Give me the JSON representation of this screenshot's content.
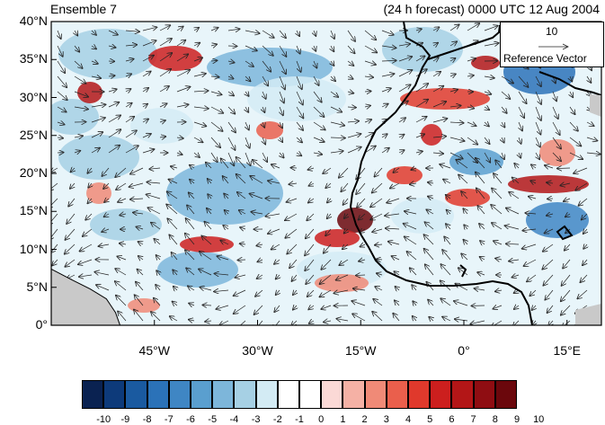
{
  "title_left": "Ensemble 7",
  "title_right": "(24 h forecast) 0000 UTC 12 Aug 2004",
  "lat_ticks": [
    {
      "value": 40,
      "label": "40°N"
    },
    {
      "value": 35,
      "label": "35°N"
    },
    {
      "value": 30,
      "label": "30°N"
    },
    {
      "value": 25,
      "label": "25°N"
    },
    {
      "value": 20,
      "label": "20°N"
    },
    {
      "value": 15,
      "label": "15°N"
    },
    {
      "value": 10,
      "label": "10°N"
    },
    {
      "value": 5,
      "label": "5°N"
    },
    {
      "value": 0,
      "label": "0°"
    }
  ],
  "lon_ticks": [
    {
      "value": -45,
      "label": "45°W"
    },
    {
      "value": -30,
      "label": "30°W"
    },
    {
      "value": -15,
      "label": "15°W"
    },
    {
      "value": 0,
      "label": "0°"
    },
    {
      "value": 15,
      "label": "15°E"
    }
  ],
  "domain": {
    "lon_min": -60,
    "lon_max": 20,
    "lat_min": 0,
    "lat_max": 40
  },
  "reference_vector": {
    "magnitude": "10",
    "label": "Reference Vector"
  },
  "colorbar": {
    "labels": [
      "-10",
      "-9",
      "-8",
      "-7",
      "-6",
      "-5",
      "-4",
      "-3",
      "-2",
      "-1",
      "0",
      "1",
      "2",
      "3",
      "4",
      "5",
      "6",
      "7",
      "8",
      "9",
      "10"
    ],
    "colors": [
      "#0a2251",
      "#0d3a7a",
      "#1a5aa0",
      "#2b72b8",
      "#3f86c4",
      "#5a9fcf",
      "#7db6da",
      "#a6d0e4",
      "#d3ebf4",
      "#ffffff",
      "#ffffff",
      "#fbd9d6",
      "#f5b1a5",
      "#f08a77",
      "#ea5f4c",
      "#e0392c",
      "#cc1f1e",
      "#b31617",
      "#8f0d12",
      "#6b070c"
    ]
  },
  "icons": {
    "reference_arrow": "right-arrow-icon"
  }
}
